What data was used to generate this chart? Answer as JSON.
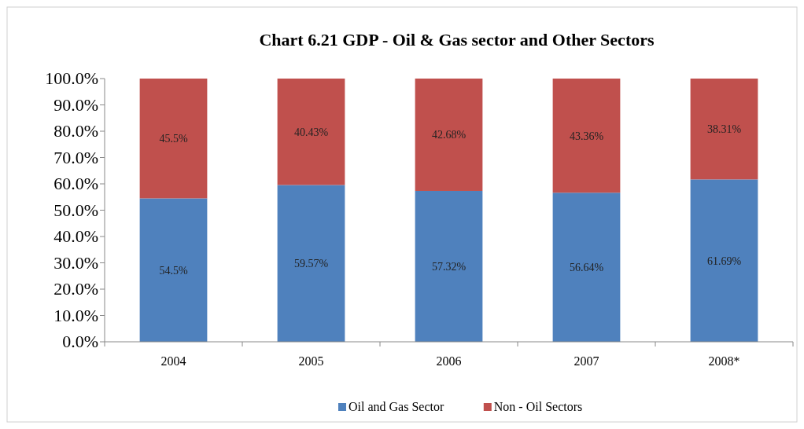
{
  "chart_data": {
    "type": "bar",
    "title": "Chart 6.21 GDP - Oil & Gas sector and Other Sectors",
    "stacked": true,
    "categories": [
      "2004",
      "2005",
      "2006",
      "2007",
      "2008*"
    ],
    "series": [
      {
        "name": "Oil and Gas Sector",
        "color": "#4f81bd",
        "values": [
          54.5,
          59.57,
          57.32,
          56.64,
          61.69
        ],
        "value_labels": [
          "54.5%",
          "59.57%",
          "57.32%",
          "56.64%",
          "61.69%"
        ]
      },
      {
        "name": "Non - Oil Sectors",
        "color": "#c0504d",
        "values": [
          45.5,
          40.43,
          42.68,
          43.36,
          38.31
        ],
        "value_labels": [
          "45.5%",
          "40.43%",
          "42.68%",
          "43.36%",
          "38.31%"
        ]
      }
    ],
    "ylim": [
      0,
      100
    ],
    "yticks": [
      {
        "value": 0,
        "label": "0.0%"
      },
      {
        "value": 10,
        "label": "10.0%"
      },
      {
        "value": 20,
        "label": "20.0%"
      },
      {
        "value": 30,
        "label": "30.0%"
      },
      {
        "value": 40,
        "label": "40.0%"
      },
      {
        "value": 50,
        "label": "50.0%"
      },
      {
        "value": 60,
        "label": "60.0%"
      },
      {
        "value": 70,
        "label": "70.0%"
      },
      {
        "value": 80,
        "label": "80.0%"
      },
      {
        "value": 90,
        "label": "90.0%"
      },
      {
        "value": 100,
        "label": "100.0%"
      }
    ],
    "legend": "bottom"
  }
}
